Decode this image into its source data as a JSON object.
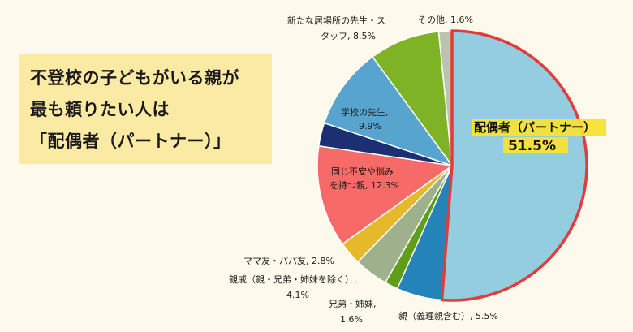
{
  "title": {
    "line1": "不登校の子どもがいる親が",
    "line2": "最も頼りたい人は",
    "line3": "「配偶者（パートナー）」"
  },
  "chart_data": {
    "type": "pie",
    "start_angle_deg": 0,
    "direction": "clockwise",
    "highlight": "配偶者（パートナー）",
    "highlight_color": "#e23b3b",
    "slices": [
      {
        "label": "配偶者（パートナー）",
        "value_text": "51.5%",
        "value": 51.5,
        "color": "#93cddf",
        "highlight": true
      },
      {
        "label": "親（義理親含む）",
        "value_text": "5.5%",
        "value": 5.5,
        "color": "#2483b8"
      },
      {
        "label": "兄弟・姉妹",
        "value_text": "1.6%",
        "value": 1.6,
        "color": "#5e9e19"
      },
      {
        "label": "親戚（親・兄弟・姉妹を除く）",
        "value_text": "4.1%",
        "value": 4.1,
        "color": "#9fb18c"
      },
      {
        "label": "ママ友・パパ友",
        "value_text": "2.8%",
        "value": 2.8,
        "color": "#e4ba2b"
      },
      {
        "label": "同じ不安や悩みを持つ親",
        "value_text": "12.3%",
        "value": 12.3,
        "color": "#f66a68"
      },
      {
        "label": "",
        "value_text": "",
        "value": 2.8,
        "color": "#1d2f73"
      },
      {
        "label": "学校の先生",
        "value_text": "9.9%",
        "value": 9.9,
        "color": "#57a4cf"
      },
      {
        "label": "新たな居場所の先生・スタッフ",
        "value_text": "8.5%",
        "value": 8.5,
        "color": "#7eb325"
      },
      {
        "label": "その他",
        "value_text": "1.6%",
        "value": 1.6,
        "color": "#bcc4ad"
      }
    ]
  },
  "labels": {
    "main_name": "配偶者（パートナー）",
    "main_value": "51.5%",
    "parent_line": "親（義理親含む）, 5.5%",
    "sibling_line1": "兄弟・姉妹,",
    "sibling_line2": "1.6%",
    "relative_line1": "親戚（親・兄弟・姉妹を除く）,",
    "relative_line2": "4.1%",
    "mamatomo_line": "ママ友・パパ友, 2.8%",
    "sameparent_line1": "同じ不安や悩み",
    "sameparent_line2": "を持つ親, 12.3%",
    "teacher_line1": "学校の先生,",
    "teacher_line2": "9.9%",
    "staff_line1": "新たな居場所の先生・ス",
    "staff_line2": "タッフ, 8.5%",
    "other_line": "その他, 1.6%"
  }
}
